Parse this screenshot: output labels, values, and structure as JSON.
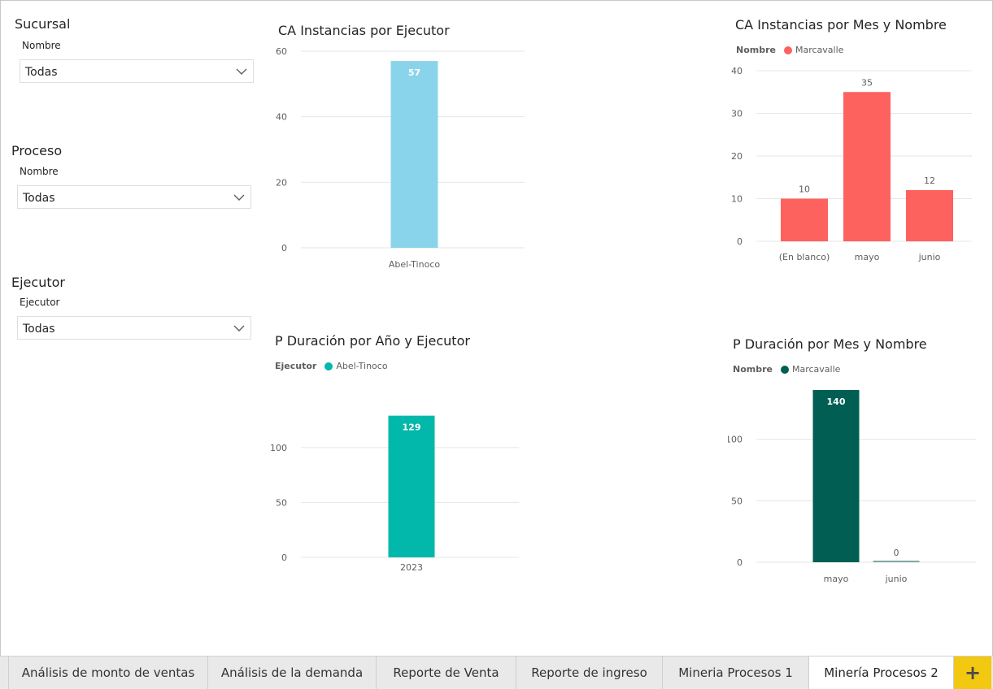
{
  "slicers": [
    {
      "title": "Sucursal",
      "field": "Nombre",
      "value": "Todas"
    },
    {
      "title": "Proceso",
      "field": "Nombre",
      "value": "Todas"
    },
    {
      "title": "Ejecutor",
      "field": "Ejecutor",
      "value": "Todas"
    }
  ],
  "icons": {
    "dropdown": "chevron-down-icon",
    "add": "plus-icon"
  },
  "colors": {
    "light_blue": "#8ad4eb",
    "coral": "#fd625e",
    "teal": "#01b8aa",
    "dark_teal": "#005e53",
    "grid": "#e6e6e6",
    "axis_text": "#605e5c",
    "add_tab": "#f2c811"
  },
  "charts": {
    "ca_ejecutor": {
      "title": "CA Instancias por Ejecutor"
    },
    "ca_mes": {
      "title": "CA Instancias por Mes y Nombre",
      "legend_title": "Nombre",
      "legend_item": "Marcavalle"
    },
    "p_anio": {
      "title": "P Duración por Año y Ejecutor",
      "legend_title": "Ejecutor",
      "legend_item": "Abel-Tinoco"
    },
    "p_mes": {
      "title": "P Duración por Mes y Nombre",
      "legend_title": "Nombre",
      "legend_item": "Marcavalle"
    }
  },
  "chart_data": [
    {
      "type": "bar",
      "title": "CA Instancias por Ejecutor",
      "categories": [
        "Abel-Tinoco"
      ],
      "values": [
        57
      ],
      "data_labels": [
        "57"
      ],
      "yticks": [
        "0",
        "20",
        "40",
        "60"
      ],
      "ylim": [
        0,
        60
      ],
      "grid": true,
      "color": "#8ad4eb"
    },
    {
      "type": "bar",
      "title": "CA Instancias por Mes y Nombre",
      "categories": [
        "(En blanco)",
        "mayo",
        "junio"
      ],
      "series": [
        {
          "name": "Marcavalle",
          "values": [
            10,
            35,
            12
          ]
        }
      ],
      "data_labels": [
        "10",
        "35",
        "12"
      ],
      "yticks": [
        "0",
        "10",
        "20",
        "30",
        "40"
      ],
      "ylim": [
        0,
        40
      ],
      "grid": true,
      "legend": "top-left",
      "color": "#fd625e"
    },
    {
      "type": "bar",
      "title": "P Duración por Año y Ejecutor",
      "categories": [
        "2023"
      ],
      "series": [
        {
          "name": "Abel-Tinoco",
          "values": [
            129
          ]
        }
      ],
      "data_labels": [
        "129"
      ],
      "yticks": [
        "0",
        "50",
        "100"
      ],
      "ylim": [
        0,
        145
      ],
      "grid": true,
      "legend": "top-left",
      "color": "#01b8aa"
    },
    {
      "type": "bar",
      "title": "P Duración por Mes y Nombre",
      "categories": [
        "mayo",
        "junio"
      ],
      "series": [
        {
          "name": "Marcavalle",
          "values": [
            140,
            0
          ]
        }
      ],
      "data_labels": [
        "140",
        "0"
      ],
      "yticks": [
        "0",
        "50",
        "100"
      ],
      "ylim": [
        0,
        140
      ],
      "grid": true,
      "legend": "top-left",
      "color": "#005e53"
    }
  ],
  "tabs": [
    {
      "label": "Análisis de monto de ventas",
      "active": false
    },
    {
      "label": "Análisis de la demanda",
      "active": false
    },
    {
      "label": "Reporte de Venta",
      "active": false
    },
    {
      "label": "Reporte de ingreso",
      "active": false
    },
    {
      "label": "Mineria Procesos 1",
      "active": false
    },
    {
      "label": "Minería Procesos 2",
      "active": true
    }
  ],
  "add_tab_label": "+"
}
